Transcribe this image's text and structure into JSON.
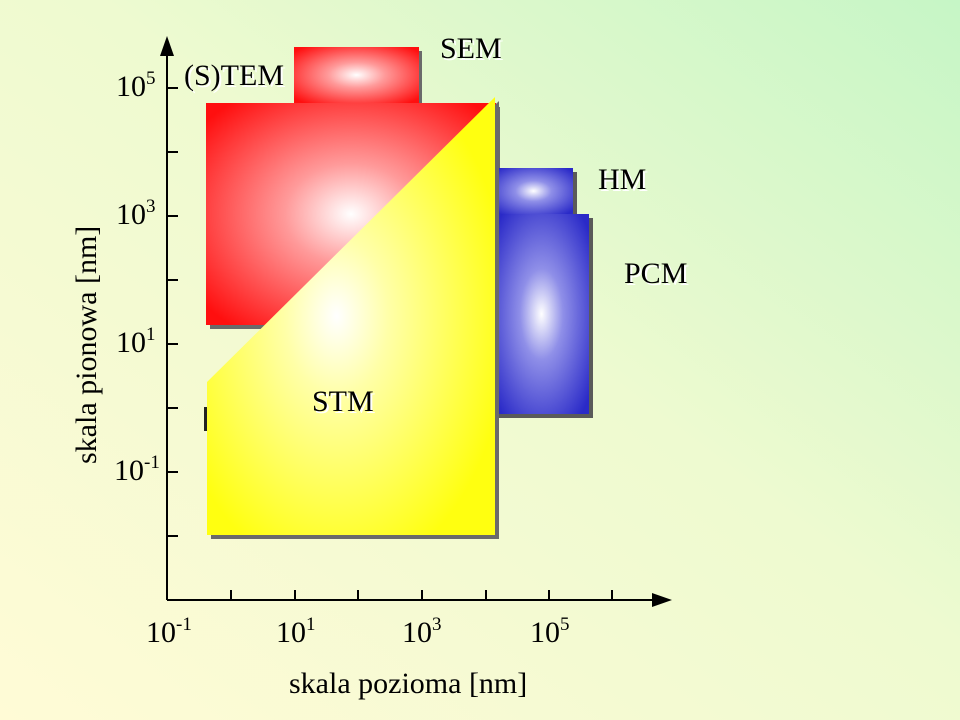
{
  "diagram": {
    "axes": {
      "x_title": "skala pozioma [nm]",
      "y_title": "skala pionowa [nm]",
      "x_ticks": [
        {
          "base": "10",
          "exp": "-1"
        },
        {
          "base": "10",
          "exp": "1"
        },
        {
          "base": "10",
          "exp": "3"
        },
        {
          "base": "10",
          "exp": "5"
        }
      ],
      "y_ticks": [
        {
          "base": "10",
          "exp": "5"
        },
        {
          "base": "10",
          "exp": "3"
        },
        {
          "base": "10",
          "exp": "1"
        },
        {
          "base": "10",
          "exp": "-1"
        }
      ]
    },
    "regions": {
      "stem": {
        "label": "(S)TEM",
        "color": "#ff2020"
      },
      "sem": {
        "label": "SEM",
        "color": "#ff2020"
      },
      "hm": {
        "label": "HM",
        "color": "#3a3ad0"
      },
      "pcm": {
        "label": "PCM",
        "color": "#3a3ad0"
      },
      "stm": {
        "label": "STM",
        "color": "#ffff33"
      }
    },
    "background": {
      "from": "#fffad8",
      "to": "#c8f5c8"
    }
  }
}
